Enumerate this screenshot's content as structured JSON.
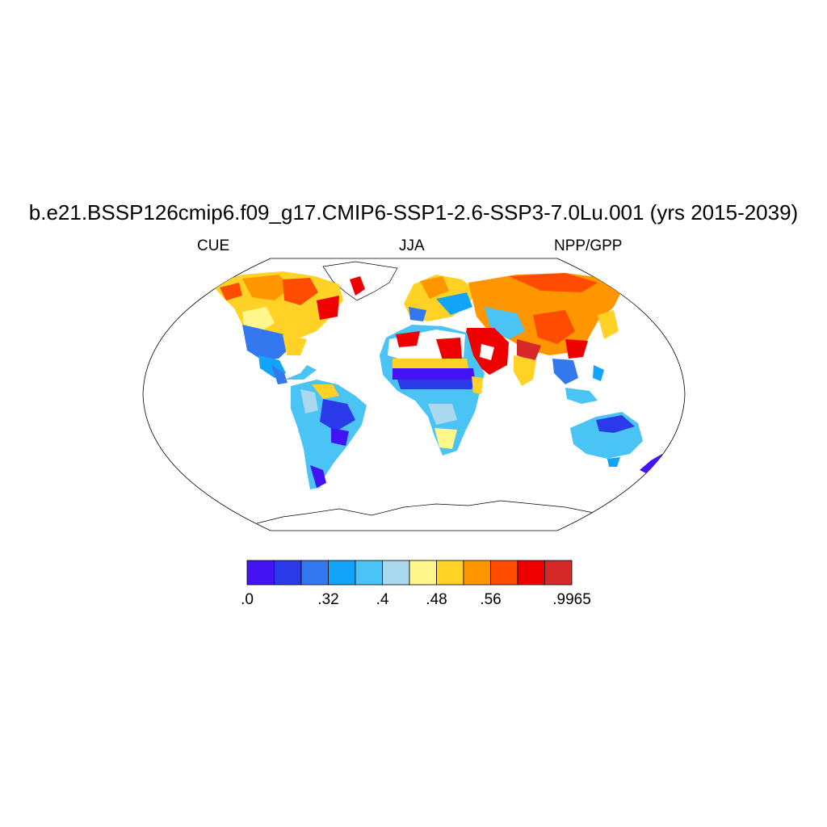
{
  "title": "b.e21.BSSP126cmip6.f09_g17.CMIP6-SSP1-2.6-SSP3-7.0Lu.001 (yrs 2015-2039)",
  "subtitle_left": "CUE",
  "subtitle_center": "JJA",
  "subtitle_right": "NPP/GPP",
  "colorbar": {
    "colors": [
      "#4413f4",
      "#2a3ae8",
      "#3478f0",
      "#11a4f8",
      "#4ac4f4",
      "#aad8ee",
      "#fff68c",
      "#ffd225",
      "#ff9600",
      "#ff4c00",
      "#ee0000",
      "#d62a2a"
    ],
    "labels": [
      {
        "text": ".0",
        "boundary": 0
      },
      {
        "text": ".32",
        "boundary": 3
      },
      {
        "text": ".4",
        "boundary": 5
      },
      {
        "text": ".48",
        "boundary": 7
      },
      {
        "text": ".56",
        "boundary": 9
      },
      {
        "text": ".9965",
        "boundary": 12
      }
    ]
  },
  "map": {
    "projection": "Robinson",
    "ocean_color": "#ffffff",
    "coast_color": "#000000"
  }
}
